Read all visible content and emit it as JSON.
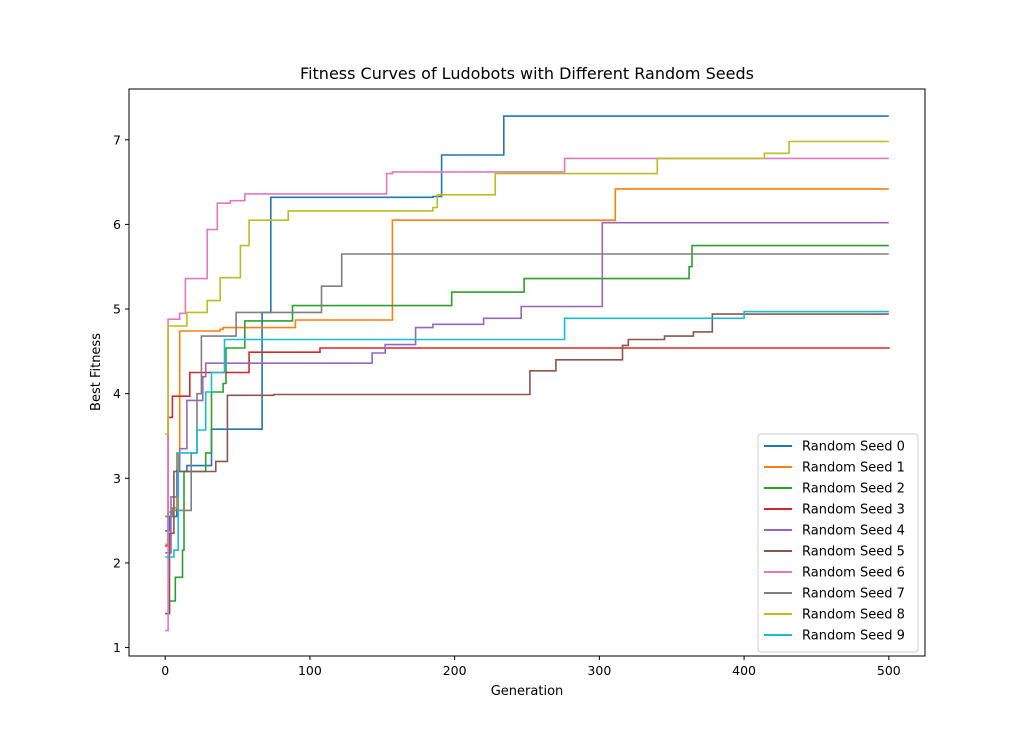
{
  "chart_data": {
    "type": "line",
    "title": "Fitness Curves of Ludobots with Different Random Seeds",
    "xlabel": "Generation",
    "ylabel": "Best Fitness",
    "xlim": [
      -25,
      525
    ],
    "ylim": [
      0.9,
      7.6
    ],
    "xticks": [
      0,
      100,
      200,
      300,
      400,
      500
    ],
    "yticks": [
      1,
      2,
      3,
      4,
      5,
      6,
      7
    ],
    "grid": false,
    "legend_position": "lower-right",
    "series": [
      {
        "name": "Random Seed 0",
        "color": "#1f77b4",
        "step": [
          [
            0,
            2.38
          ],
          [
            3,
            2.55
          ],
          [
            8,
            3.08
          ],
          [
            15,
            3.15
          ],
          [
            32,
            3.58
          ],
          [
            67,
            4.96
          ],
          [
            73,
            6.32
          ],
          [
            185,
            6.33
          ],
          [
            191,
            6.82
          ],
          [
            234,
            7.28
          ],
          [
            500,
            7.28
          ]
        ]
      },
      {
        "name": "Random Seed 1",
        "color": "#ff7f0e",
        "step": [
          [
            0,
            2.22
          ],
          [
            2,
            2.6
          ],
          [
            5,
            2.65
          ],
          [
            8,
            3.3
          ],
          [
            10,
            4.74
          ],
          [
            38,
            4.76
          ],
          [
            40,
            4.78
          ],
          [
            90,
            4.87
          ],
          [
            157,
            6.05
          ],
          [
            311,
            6.42
          ],
          [
            500,
            6.42
          ]
        ]
      },
      {
        "name": "Random Seed 2",
        "color": "#2ca02c",
        "step": [
          [
            0,
            1.4
          ],
          [
            3,
            1.55
          ],
          [
            7,
            1.83
          ],
          [
            12,
            2.15
          ],
          [
            13,
            3.08
          ],
          [
            28,
            3.3
          ],
          [
            32,
            4.02
          ],
          [
            40,
            4.12
          ],
          [
            42,
            4.54
          ],
          [
            55,
            4.86
          ],
          [
            88,
            5.04
          ],
          [
            198,
            5.2
          ],
          [
            248,
            5.36
          ],
          [
            362,
            5.5
          ],
          [
            364,
            5.75
          ],
          [
            500,
            5.75
          ]
        ]
      },
      {
        "name": "Random Seed 3",
        "color": "#d62728",
        "step": [
          [
            0,
            2.2
          ],
          [
            2,
            3.72
          ],
          [
            5,
            3.97
          ],
          [
            17,
            4.25
          ],
          [
            58,
            4.49
          ],
          [
            107,
            4.54
          ],
          [
            500,
            4.55
          ]
        ]
      },
      {
        "name": "Random Seed 4",
        "color": "#9467bd",
        "step": [
          [
            0,
            2.12
          ],
          [
            4,
            2.78
          ],
          [
            8,
            3.1
          ],
          [
            10,
            3.35
          ],
          [
            15,
            3.92
          ],
          [
            26,
            4.2
          ],
          [
            28,
            4.36
          ],
          [
            143,
            4.48
          ],
          [
            152,
            4.58
          ],
          [
            173,
            4.78
          ],
          [
            185,
            4.82
          ],
          [
            220,
            4.89
          ],
          [
            246,
            5.03
          ],
          [
            302,
            6.02
          ],
          [
            500,
            6.02
          ]
        ]
      },
      {
        "name": "Random Seed 5",
        "color": "#8c564b",
        "step": [
          [
            0,
            1.4
          ],
          [
            3,
            2.35
          ],
          [
            6,
            3.08
          ],
          [
            32,
            3.08
          ],
          [
            35,
            3.2
          ],
          [
            43,
            3.98
          ],
          [
            75,
            3.99
          ],
          [
            252,
            4.27
          ],
          [
            270,
            4.4
          ],
          [
            316,
            4.57
          ],
          [
            320,
            4.64
          ],
          [
            345,
            4.68
          ],
          [
            365,
            4.73
          ],
          [
            378,
            4.94
          ],
          [
            500,
            4.94
          ]
        ]
      },
      {
        "name": "Random Seed 6",
        "color": "#e377c2",
        "step": [
          [
            0,
            1.2
          ],
          [
            2,
            4.88
          ],
          [
            10,
            4.95
          ],
          [
            14,
            5.36
          ],
          [
            29,
            5.94
          ],
          [
            36,
            6.25
          ],
          [
            45,
            6.28
          ],
          [
            55,
            6.36
          ],
          [
            153,
            6.6
          ],
          [
            157,
            6.62
          ],
          [
            276,
            6.78
          ],
          [
            500,
            6.78
          ]
        ]
      },
      {
        "name": "Random Seed 7",
        "color": "#7f7f7f",
        "step": [
          [
            0,
            2.55
          ],
          [
            5,
            2.62
          ],
          [
            10,
            2.62
          ],
          [
            18,
            3.3
          ],
          [
            22,
            4.0
          ],
          [
            25,
            4.68
          ],
          [
            49,
            4.96
          ],
          [
            108,
            5.27
          ],
          [
            122,
            5.65
          ],
          [
            500,
            5.65
          ]
        ]
      },
      {
        "name": "Random Seed 8",
        "color": "#bcbd22",
        "step": [
          [
            0,
            3.52
          ],
          [
            2,
            4.8
          ],
          [
            15,
            4.96
          ],
          [
            29,
            5.1
          ],
          [
            38,
            5.37
          ],
          [
            52,
            5.75
          ],
          [
            58,
            6.05
          ],
          [
            85,
            6.16
          ],
          [
            185,
            6.2
          ],
          [
            188,
            6.35
          ],
          [
            228,
            6.6
          ],
          [
            340,
            6.78
          ],
          [
            414,
            6.84
          ],
          [
            431,
            6.98
          ],
          [
            500,
            6.98
          ]
        ]
      },
      {
        "name": "Random Seed 9",
        "color": "#17becf",
        "step": [
          [
            0,
            2.07
          ],
          [
            6,
            2.15
          ],
          [
            9,
            3.3
          ],
          [
            22,
            3.57
          ],
          [
            28,
            4.02
          ],
          [
            32,
            4.25
          ],
          [
            41,
            4.64
          ],
          [
            276,
            4.89
          ],
          [
            400,
            4.97
          ],
          [
            500,
            4.97
          ]
        ]
      }
    ]
  }
}
